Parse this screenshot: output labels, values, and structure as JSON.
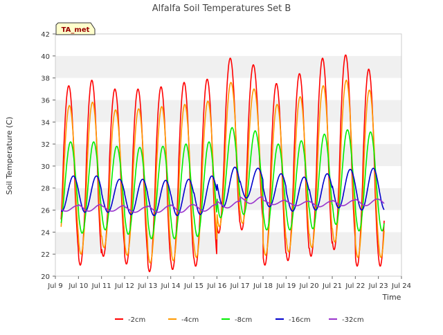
{
  "chart_data": {
    "type": "line",
    "title": "Alfalfa Soil Temperatures Set B",
    "xlabel": "Time",
    "ylabel": "Soil Temperature (C)",
    "annotation": "TA_met",
    "xlim": [
      9.0,
      24.0
    ],
    "ylim": [
      20,
      42
    ],
    "yticks": [
      20,
      22,
      24,
      26,
      28,
      30,
      32,
      34,
      36,
      38,
      40,
      42
    ],
    "xticks": [
      {
        "v": 9,
        "label": "Jul 9"
      },
      {
        "v": 10,
        "label": "Jul 10"
      },
      {
        "v": 11,
        "label": "Jul 11"
      },
      {
        "v": 12,
        "label": "Jul 12"
      },
      {
        "v": 13,
        "label": "Jul 13"
      },
      {
        "v": 14,
        "label": "Jul 14"
      },
      {
        "v": 15,
        "label": "Jul 15"
      },
      {
        "v": 16,
        "label": "Jul 16"
      },
      {
        "v": 17,
        "label": "Jul 17"
      },
      {
        "v": 18,
        "label": "Jul 18"
      },
      {
        "v": 19,
        "label": "Jul 19"
      },
      {
        "v": 20,
        "label": "Jul 20"
      },
      {
        "v": 21,
        "label": "Jul 21"
      },
      {
        "v": 22,
        "label": "Jul 22"
      },
      {
        "v": 23,
        "label": "Jul 23"
      },
      {
        "v": 24,
        "label": "Jul 24"
      }
    ],
    "legend_position": "bottom",
    "grid": "horizontal bands",
    "series": [
      {
        "name": "-2cm",
        "color": "#ff0000",
        "max": [
          37.3,
          37.8,
          37.0,
          37.0,
          37.2,
          37.6,
          37.9,
          39.8,
          39.2,
          37.5,
          38.4,
          39.8,
          40.1,
          38.8
        ],
        "min": [
          21.5,
          21.0,
          21.8,
          21.1,
          20.4,
          20.6,
          20.9,
          23.9,
          24.2,
          21.0,
          21.4,
          21.8,
          22.4,
          20.9
        ]
      },
      {
        "name": "-4cm",
        "color": "#ff9900",
        "max": [
          35.5,
          35.8,
          35.1,
          35.2,
          35.4,
          35.6,
          35.9,
          37.6,
          37.0,
          35.6,
          36.3,
          37.3,
          37.8,
          36.9
        ],
        "min": [
          22.4,
          22.0,
          22.6,
          21.9,
          21.2,
          21.4,
          21.7,
          24.5,
          24.8,
          21.9,
          22.2,
          22.6,
          23.1,
          21.7
        ]
      },
      {
        "name": "-8cm",
        "color": "#00ee00",
        "max": [
          32.2,
          32.2,
          31.8,
          31.7,
          31.8,
          32.0,
          32.2,
          33.5,
          33.2,
          32.0,
          32.3,
          32.9,
          33.3,
          33.1
        ],
        "min": [
          24.2,
          23.9,
          24.2,
          23.8,
          23.4,
          23.4,
          23.6,
          25.3,
          25.6,
          24.2,
          24.2,
          24.3,
          24.7,
          24.1
        ]
      },
      {
        "name": "-16cm",
        "color": "#0000cc",
        "max": [
          29.1,
          29.1,
          28.8,
          28.8,
          28.7,
          28.8,
          29.1,
          29.9,
          29.8,
          29.3,
          29.0,
          29.3,
          29.7,
          29.8
        ],
        "min": [
          25.9,
          25.8,
          25.8,
          25.6,
          25.5,
          25.5,
          25.6,
          26.3,
          27.1,
          26.3,
          25.9,
          26.0,
          26.2,
          26.0
        ]
      },
      {
        "name": "-32cm",
        "color": "#9933cc",
        "max": [
          26.4,
          26.5,
          26.4,
          26.3,
          26.4,
          26.5,
          26.5,
          26.8,
          27.2,
          26.9,
          26.8,
          26.8,
          26.9,
          27.0
        ],
        "min": [
          25.9,
          25.9,
          25.9,
          25.8,
          25.8,
          25.8,
          25.9,
          26.2,
          26.6,
          26.5,
          26.4,
          26.3,
          26.4,
          26.4
        ]
      }
    ]
  }
}
